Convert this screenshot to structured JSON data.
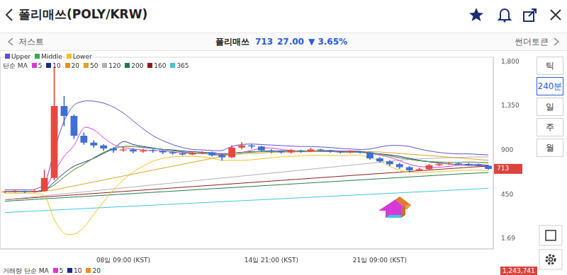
{
  "header": {
    "title": "폴리매쓰(POLY/KRW)"
  },
  "nav": {
    "prev": "저스트",
    "name": "폴리매쓰",
    "price": "713",
    "change": "27.00",
    "change_pct": "▼ 3.65%",
    "next": "썬더토큰"
  },
  "intervals": [
    "틱",
    "240분",
    "일",
    "주",
    "월"
  ],
  "selected_interval": "240분",
  "ma_legend_title": "단순 MA",
  "volume_legend": {
    "title": "거래량 단순 MA",
    "items": [
      {
        "name": "5",
        "color": "#d63ad6"
      },
      {
        "name": "10",
        "color": "#1b2a8c"
      },
      {
        "name": "20",
        "color": "#f08c1a"
      }
    ]
  },
  "volume_last": "1,243,741",
  "chart_data": {
    "type": "candlestick",
    "categories": [
      null,
      null,
      null,
      null,
      null,
      null,
      null,
      null,
      null,
      null,
      null,
      null,
      "08일 09:00 (KST)",
      null,
      null,
      null,
      null,
      null,
      null,
      null,
      null,
      null,
      null,
      null,
      null,
      null,
      null,
      "14일 21:00 (KST)",
      null,
      null,
      null,
      null,
      null,
      null,
      null,
      null,
      null,
      null,
      "21일 09:00 (KST)",
      null,
      null,
      null,
      null,
      null,
      null,
      null,
      null,
      null,
      null,
      null
    ],
    "ylim": [
      -100,
      1850
    ],
    "yticks": [
      1.69,
      450,
      900,
      {
        "value": 1350,
        "label": "1,350"
      },
      {
        "value": 1800,
        "label": "1,800"
      }
    ],
    "grid": false,
    "log": false,
    "last_price": 713,
    "series": [
      {
        "type": "candlestick",
        "open": [
          475,
          480,
          485,
          478,
          490,
          620,
          1350,
          1250,
          1050,
          980,
          950,
          920,
          900,
          910,
          890,
          900,
          895,
          880,
          870,
          860,
          875,
          880,
          850,
          830,
          930,
          950,
          940,
          900,
          890,
          880,
          900,
          890,
          910,
          900,
          890,
          880,
          890,
          880,
          820,
          790,
          760,
          730,
          700,
          710,
          750,
          760,
          770,
          760,
          755,
          745
        ],
        "high": [
          490,
          495,
          490,
          500,
          700,
          1750,
          1450,
          1260,
          1080,
          1000,
          960,
          930,
          930,
          920,
          915,
          910,
          905,
          890,
          880,
          885,
          890,
          885,
          860,
          950,
          980,
          960,
          945,
          910,
          900,
          910,
          905,
          925,
          915,
          905,
          895,
          900,
          895,
          885,
          830,
          800,
          770,
          740,
          725,
          760,
          775,
          780,
          775,
          770,
          765,
          750
        ],
        "low": [
          470,
          475,
          470,
          475,
          485,
          600,
          1150,
          1020,
          960,
          930,
          900,
          880,
          890,
          875,
          880,
          880,
          865,
          860,
          850,
          855,
          865,
          840,
          800,
          825,
          915,
          920,
          890,
          875,
          870,
          870,
          880,
          885,
          890,
          880,
          870,
          875,
          870,
          810,
          780,
          745,
          715,
          680,
          695,
          705,
          745,
          755,
          750,
          745,
          735,
          705
        ],
        "close": [
          480,
          485,
          478,
          490,
          620,
          1350,
          1250,
          1050,
          980,
          950,
          920,
          900,
          910,
          890,
          900,
          895,
          880,
          870,
          860,
          875,
          880,
          850,
          830,
          930,
          950,
          940,
          900,
          890,
          880,
          900,
          890,
          910,
          900,
          890,
          880,
          890,
          880,
          820,
          790,
          760,
          730,
          700,
          710,
          750,
          760,
          770,
          760,
          755,
          745,
          713
        ],
        "colors": [
          "#e8473f",
          "#e8473f",
          "#3d6fd9",
          "#e8473f",
          "#e8473f",
          "#e8473f",
          "#3d6fd9",
          "#3d6fd9",
          "#3d6fd9",
          "#3d6fd9",
          "#3d6fd9",
          "#3d6fd9",
          "#e8473f",
          "#3d6fd9",
          "#e8473f",
          "#3d6fd9",
          "#3d6fd9",
          "#3d6fd9",
          "#3d6fd9",
          "#e8473f",
          "#e8473f",
          "#3d6fd9",
          "#3d6fd9",
          "#e8473f",
          "#e8473f",
          "#3d6fd9",
          "#3d6fd9",
          "#3d6fd9",
          "#3d6fd9",
          "#e8473f",
          "#3d6fd9",
          "#e8473f",
          "#3d6fd9",
          "#3d6fd9",
          "#3d6fd9",
          "#e8473f",
          "#3d6fd9",
          "#3d6fd9",
          "#3d6fd9",
          "#3d6fd9",
          "#3d6fd9",
          "#3d6fd9",
          "#e8473f",
          "#e8473f",
          "#e8473f",
          "#e8473f",
          "#3d6fd9",
          "#3d6fd9",
          "#3d6fd9",
          "#3d6fd9"
        ]
      },
      {
        "type": "line",
        "name": "Upper",
        "color": "#5a4fcf",
        "values": [
          500,
          500,
          500,
          505,
          560,
          900,
          1200,
          1360,
          1400,
          1400,
          1380,
          1340,
          1280,
          1200,
          1120,
          1050,
          1000,
          960,
          930,
          910,
          905,
          900,
          900,
          940,
          960,
          965,
          960,
          955,
          950,
          945,
          940,
          940,
          935,
          930,
          920,
          915,
          910,
          915,
          935,
          950,
          950,
          940,
          915,
          895,
          880,
          870,
          865,
          865,
          860,
          855
        ]
      },
      {
        "type": "line",
        "name": "Middle",
        "color": "#3aa757",
        "values": [
          482,
          482,
          482,
          483,
          500,
          550,
          630,
          705,
          760,
          825,
          880,
          920,
          940,
          940,
          930,
          920,
          910,
          898,
          885,
          875,
          870,
          860,
          850,
          870,
          880,
          885,
          888,
          890,
          892,
          892,
          892,
          895,
          892,
          889,
          884,
          882,
          880,
          872,
          862,
          845,
          825,
          810,
          795,
          788,
          782,
          780,
          780,
          782,
          780,
          775
        ]
      },
      {
        "type": "line",
        "name": "Lower",
        "color": "#f2c21b",
        "values": [
          465,
          465,
          465,
          462,
          440,
          200,
          60,
          50,
          120,
          250,
          380,
          500,
          600,
          680,
          740,
          790,
          820,
          835,
          840,
          840,
          835,
          820,
          800,
          800,
          800,
          805,
          815,
          825,
          835,
          840,
          845,
          850,
          850,
          848,
          848,
          850,
          850,
          830,
          790,
          740,
          700,
          680,
          675,
          680,
          685,
          690,
          695,
          700,
          700,
          695
        ]
      },
      {
        "type": "line",
        "name": "5",
        "color": "#d63ad6",
        "values": [
          480,
          482,
          481,
          483,
          510,
          680,
          840,
          950,
          1130,
          1110,
          1030,
          960,
          930,
          915,
          905,
          900,
          896,
          884,
          876,
          870,
          872,
          866,
          860,
          870,
          880,
          900,
          922,
          924,
          910,
          900,
          892,
          894,
          898,
          900,
          894,
          890,
          888,
          872,
          852,
          830,
          796,
          760,
          738,
          730,
          730,
          738,
          750,
          760,
          760,
          750
        ]
      },
      {
        "type": "line",
        "name": "10",
        "color": "#1b2a8c",
        "values": [
          480,
          481,
          481,
          482,
          495,
          580,
          670,
          740,
          780,
          820,
          870,
          920,
          990,
          960,
          940,
          925,
          910,
          905,
          895,
          888,
          882,
          875,
          865,
          870,
          878,
          885,
          890,
          895,
          895,
          897,
          893,
          895,
          895,
          893,
          890,
          892,
          890,
          875,
          865,
          855,
          840,
          820,
          800,
          785,
          772,
          765,
          755,
          750,
          748,
          745
        ]
      },
      {
        "type": "line",
        "name": "20",
        "color": "#f08c1a",
        "values": [
          482,
          482,
          482,
          483,
          500,
          550,
          630,
          705,
          760,
          825,
          880,
          920,
          940,
          940,
          930,
          920,
          910,
          898,
          885,
          875,
          870,
          860,
          850,
          870,
          880,
          885,
          888,
          890,
          892,
          892,
          892,
          895,
          892,
          889,
          884,
          882,
          880,
          872,
          862,
          845,
          825,
          810,
          795,
          788,
          782,
          780,
          780,
          782,
          780,
          775
        ]
      },
      {
        "type": "line",
        "name": "50",
        "color": "#e0a020",
        "values": [
          480,
          480,
          480,
          481,
          485,
          500,
          520,
          540,
          560,
          580,
          600,
          620,
          640,
          660,
          680,
          700,
          720,
          740,
          760,
          780,
          800,
          820,
          840,
          855,
          865,
          870,
          875,
          880,
          882,
          884,
          886,
          888,
          890,
          890,
          890,
          890,
          890,
          888,
          884,
          878,
          870,
          862,
          855,
          848,
          840,
          832,
          824,
          816,
          808,
          800
        ]
      },
      {
        "type": "line",
        "name": "120",
        "color": "#b0b0b0",
        "values": [
          400,
          410,
          420,
          430,
          440,
          450,
          460,
          470,
          480,
          490,
          500,
          510,
          520,
          530,
          540,
          550,
          560,
          570,
          580,
          590,
          600,
          610,
          620,
          630,
          640,
          650,
          660,
          670,
          680,
          690,
          700,
          710,
          720,
          730,
          740,
          750,
          760,
          770,
          780,
          790,
          800,
          808,
          814,
          818,
          822,
          826,
          829,
          832,
          834,
          835
        ]
      },
      {
        "type": "line",
        "name": "200",
        "color": "#1f7a4a",
        "values": [
          385,
          391,
          397,
          403,
          409,
          415,
          421,
          427,
          433,
          439,
          445,
          451,
          457,
          463,
          469,
          475,
          481,
          487,
          493,
          499,
          505,
          511,
          517,
          523,
          529,
          535,
          541,
          547,
          553,
          559,
          565,
          571,
          577,
          583,
          589,
          595,
          601,
          607,
          613,
          619,
          625,
          631,
          637,
          643,
          649,
          655,
          661,
          666,
          671,
          675
        ]
      },
      {
        "type": "line",
        "name": "160",
        "color": "#8b1a1a",
        "values": [
          400,
          407,
          414,
          421,
          428,
          435,
          442,
          449,
          456,
          463,
          470,
          477,
          484,
          491,
          498,
          505,
          512,
          519,
          526,
          533,
          540,
          547,
          554,
          561,
          568,
          575,
          582,
          589,
          596,
          603,
          610,
          617,
          624,
          631,
          638,
          645,
          652,
          659,
          666,
          673,
          680,
          687,
          694,
          701,
          708,
          715,
          722,
          729,
          735,
          740
        ]
      },
      {
        "type": "line",
        "name": "365",
        "color": "#3cc4e0",
        "values": [
          270,
          275,
          280,
          285,
          290,
          295,
          300,
          305,
          310,
          315,
          320,
          325,
          330,
          335,
          340,
          345,
          350,
          355,
          360,
          365,
          370,
          375,
          380,
          385,
          390,
          395,
          400,
          405,
          410,
          415,
          420,
          425,
          430,
          435,
          440,
          445,
          450,
          455,
          460,
          465,
          470,
          475,
          480,
          485,
          490,
          495,
          500,
          505,
          510,
          515
        ]
      }
    ]
  }
}
